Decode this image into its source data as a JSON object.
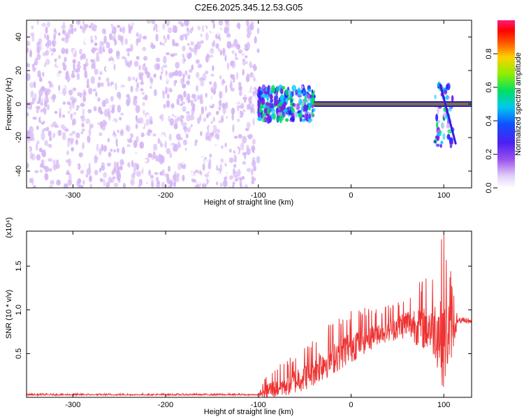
{
  "title": "C2E6.2025.345.12.53.G05",
  "chart_data": [
    {
      "type": "heatmap",
      "name": "spectrogram",
      "xlabel": "Height of straight line (km)",
      "ylabel": "Frequency (Hz)",
      "xlim": [
        -350,
        130
      ],
      "ylim": [
        -50,
        50
      ],
      "xticks": [
        -300,
        -200,
        -100,
        0,
        100
      ],
      "yticks": [
        -40,
        -20,
        0,
        20,
        40
      ],
      "colorbar": {
        "label": "Normalized spectral amplitude",
        "range": [
          0,
          1
        ],
        "ticks": [
          "0.0",
          "0.2",
          "0.4",
          "0.6",
          "0.8"
        ],
        "colors": [
          "#ffffff",
          "#d6b8f5",
          "#7a1fe8",
          "#2020ff",
          "#00c8ff",
          "#00e060",
          "#b0f000",
          "#ffd000",
          "#ff6000",
          "#ff0000",
          "#ff1080"
        ]
      },
      "regions": [
        {
          "x_range": [
            -350,
            -100
          ],
          "y_range": [
            -50,
            50
          ],
          "description": "broadband noise",
          "level": 0.15
        },
        {
          "x_range": [
            -100,
            -40
          ],
          "y_range": [
            -10,
            10
          ],
          "description": "signal onset",
          "level": 0.45
        },
        {
          "x_range": [
            -40,
            130
          ],
          "y_range": [
            -1.5,
            1.5
          ],
          "description": "carrier line",
          "level": 0.9
        },
        {
          "x_range": [
            90,
            110
          ],
          "y_range": [
            -25,
            12
          ],
          "description": "perturbation",
          "level": 0.4
        }
      ]
    },
    {
      "type": "line",
      "name": "snr",
      "xlabel": "Height of straight line (km)",
      "ylabel": "SNR (10 * v/v)",
      "scale_label": "(x10⁴)",
      "xlim": [
        -350,
        130
      ],
      "ylim": [
        0,
        1.9
      ],
      "xticks": [
        -300,
        -200,
        -100,
        0,
        100
      ],
      "yticks": [
        "0.5",
        "1.0",
        "1.5"
      ],
      "color": "#ee3333",
      "series_envelope": [
        {
          "x": -350,
          "base": 0.03,
          "amp": 0.01
        },
        {
          "x": -100,
          "base": 0.03,
          "amp": 0.01
        },
        {
          "x": -90,
          "base": 0.08,
          "amp": 0.15
        },
        {
          "x": -70,
          "base": 0.15,
          "amp": 0.2
        },
        {
          "x": -50,
          "base": 0.25,
          "amp": 0.25
        },
        {
          "x": -30,
          "base": 0.4,
          "amp": 0.3
        },
        {
          "x": 0,
          "base": 0.6,
          "amp": 0.3
        },
        {
          "x": 30,
          "base": 0.75,
          "amp": 0.2
        },
        {
          "x": 60,
          "base": 0.85,
          "amp": 0.25
        },
        {
          "x": 90,
          "base": 0.8,
          "amp": 0.5
        },
        {
          "x": 100,
          "base": 0.7,
          "amp": 0.9
        },
        {
          "x": 110,
          "base": 0.8,
          "amp": 0.4
        },
        {
          "x": 115,
          "base": 0.87,
          "amp": 0.03
        },
        {
          "x": 130,
          "base": 0.87,
          "amp": 0.03
        }
      ]
    }
  ]
}
